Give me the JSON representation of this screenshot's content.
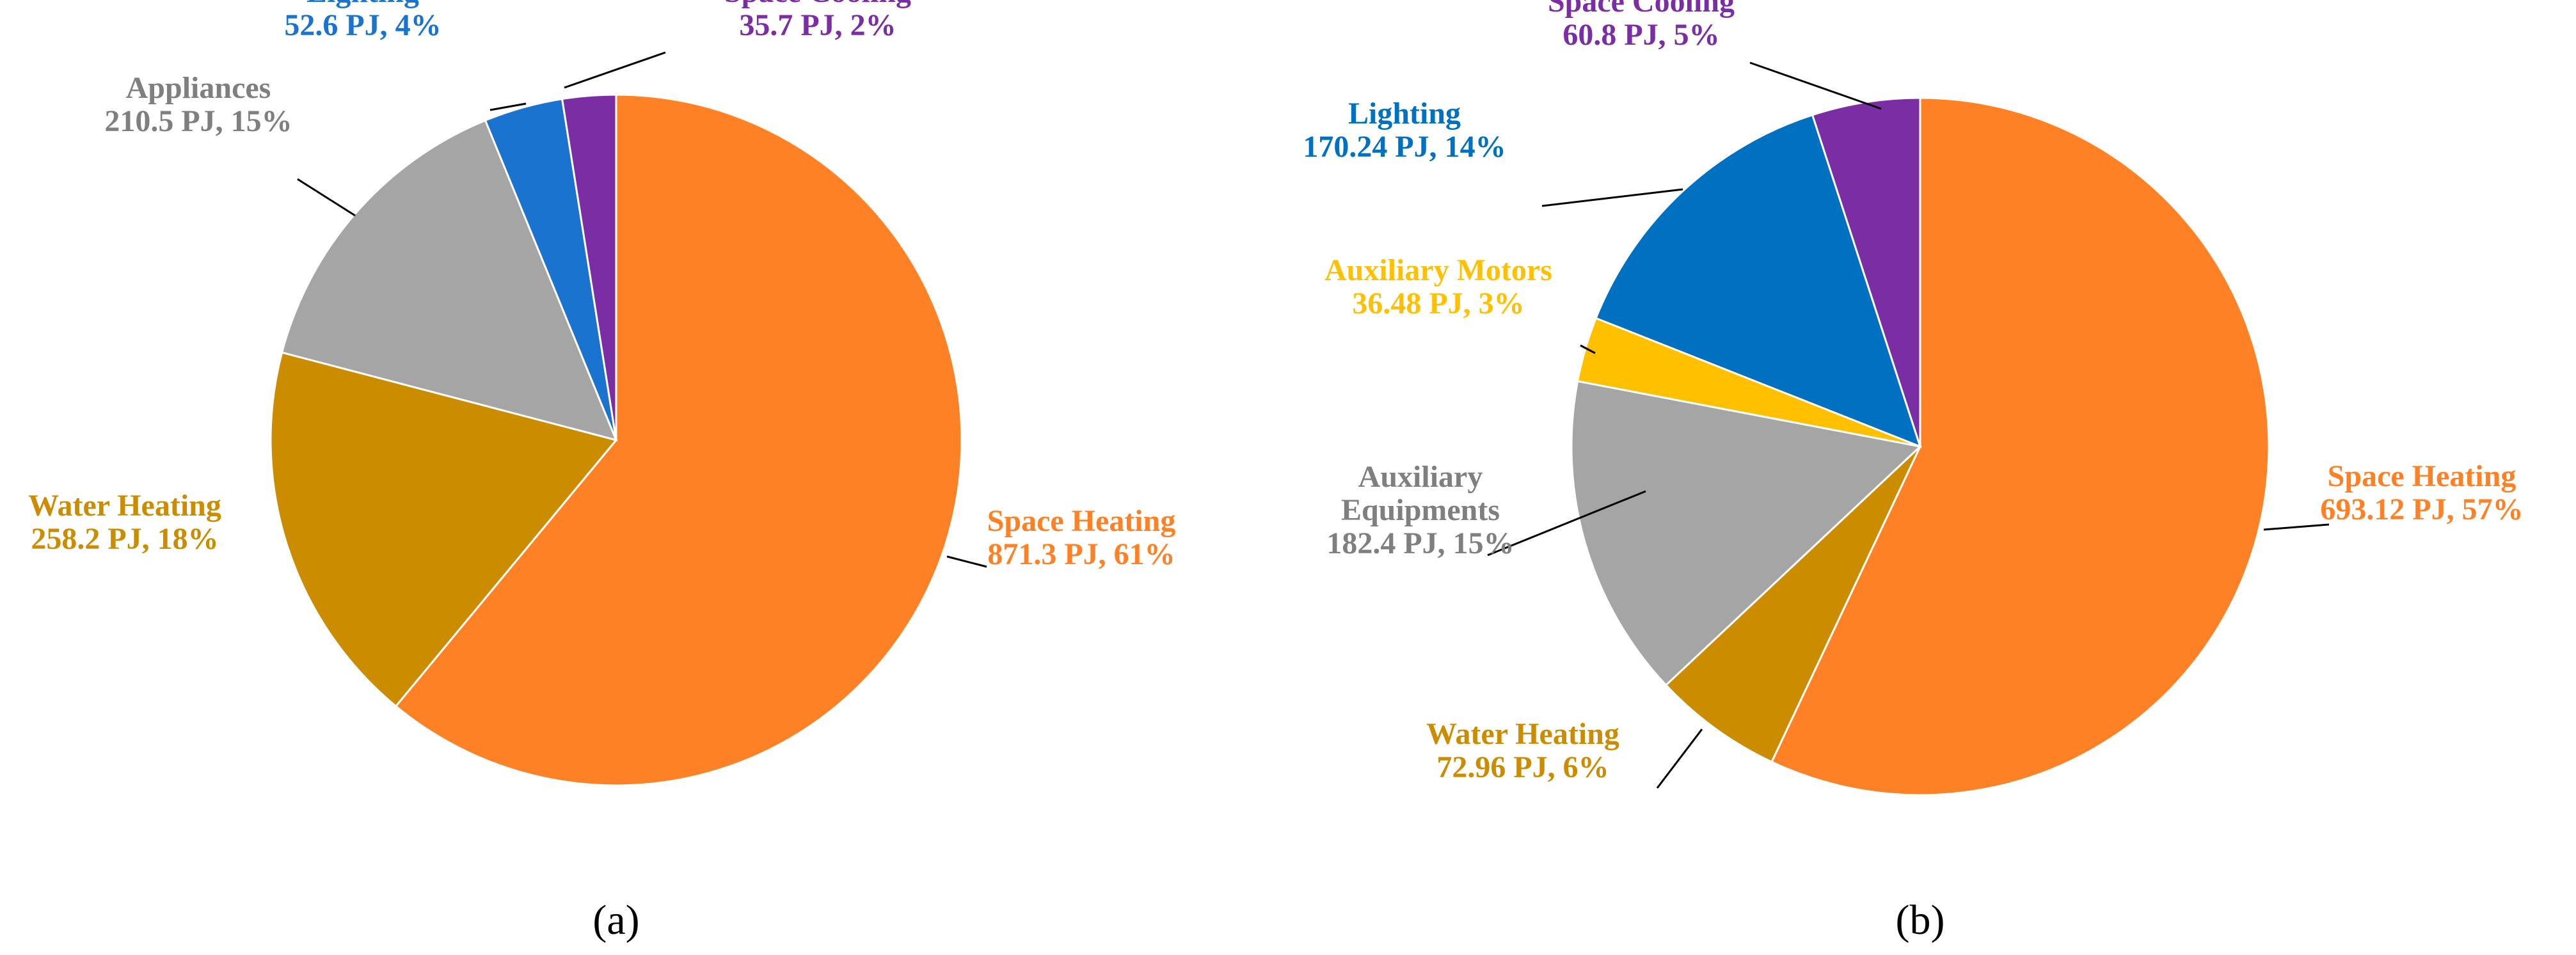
{
  "chart_data": [
    {
      "type": "pie",
      "caption": "(a)",
      "slices": [
        {
          "category": "Space Heating",
          "value": 871.3,
          "value_text": "871.3 PJ, 61%",
          "percent": 61,
          "color": "#FF8125"
        },
        {
          "category": "Water Heating",
          "value": 258.2,
          "value_text": "258.2 PJ, 18%",
          "percent": 18,
          "color": "#CC8C00"
        },
        {
          "category": "Appliances",
          "value": 210.5,
          "value_text": "210.5 PJ, 15%",
          "percent": 15,
          "color": "#A5A5A5"
        },
        {
          "category": "Lighting",
          "value": 52.6,
          "value_text": "52.6 PJ, 4%",
          "percent": 4,
          "color": "#1A73CF"
        },
        {
          "category": "Space Cooling",
          "value": 35.7,
          "value_text": "35.7 PJ, 2%",
          "percent": 2,
          "color": "#7B2DA4"
        }
      ]
    },
    {
      "type": "pie",
      "caption": "(b)",
      "slices": [
        {
          "category": "Space Heating",
          "value": 693.12,
          "value_text": "693.12 PJ, 57%",
          "percent": 57,
          "color": "#FF8125"
        },
        {
          "category": "Water Heating",
          "value": 72.96,
          "value_text": "72.96 PJ, 6%",
          "percent": 6,
          "color": "#CC8C00"
        },
        {
          "category": "Auxiliary Equipments",
          "category_lines": [
            "Auxiliary",
            "Equipments"
          ],
          "value": 182.4,
          "value_text": "182.4 PJ, 15%",
          "percent": 15,
          "color": "#A5A5A5"
        },
        {
          "category": "Auxiliary Motors",
          "value": 36.48,
          "value_text": "36.48 PJ, 3%",
          "percent": 3,
          "color": "#FFC000"
        },
        {
          "category": "Lighting",
          "value": 170.24,
          "value_text": "170.24 PJ, 14%",
          "percent": 14,
          "color": "#0070C0"
        },
        {
          "category": "Space Cooling",
          "value": 60.8,
          "value_text": "60.8 PJ, 5%",
          "percent": 5,
          "color": "#7B2DA4"
        }
      ]
    }
  ]
}
